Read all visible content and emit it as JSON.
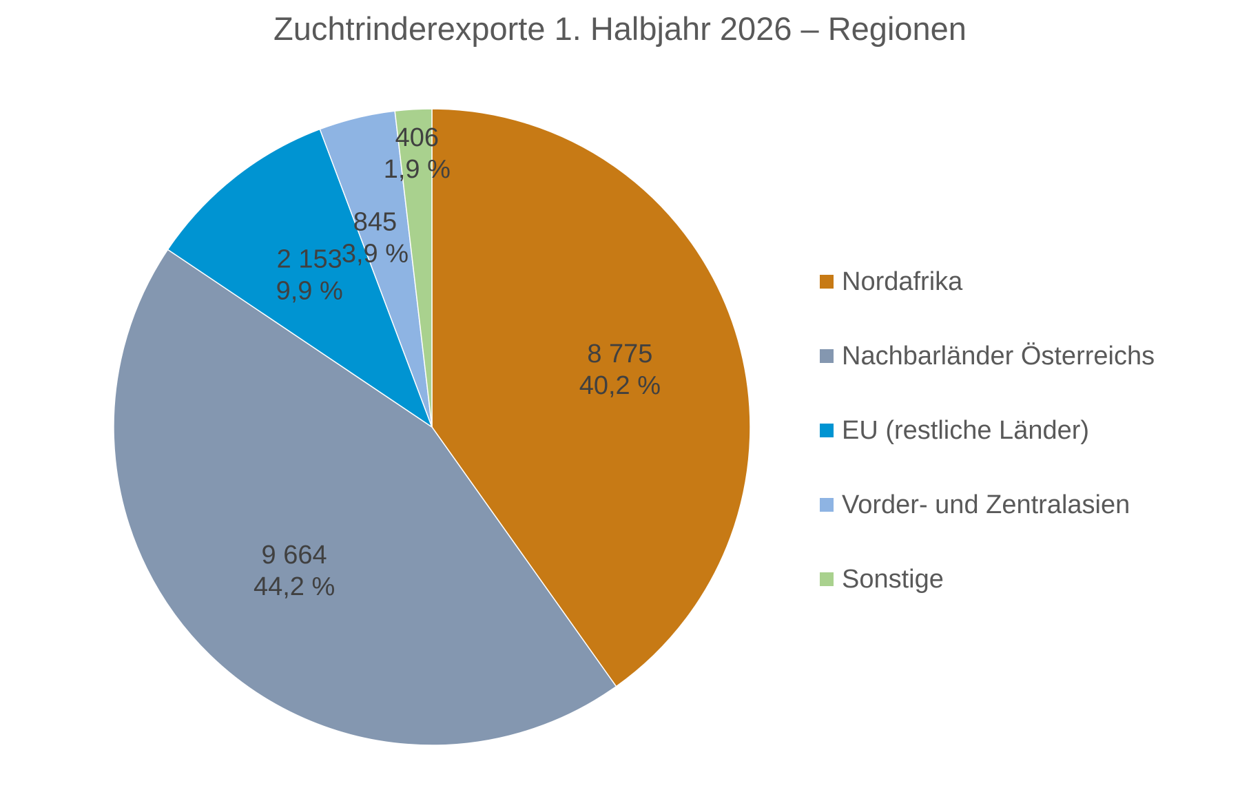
{
  "chart_data": {
    "type": "pie",
    "title": "Zuchtrinderexporte 1. Halbjahr 2026 – Regionen",
    "start_angle_deg": 0,
    "direction": "clockwise",
    "legend_position": "right",
    "slices": [
      {
        "name": "Nordafrika",
        "value": 8775,
        "value_label": "8 775",
        "percent_label": "40,2 %",
        "color": "#C77A15"
      },
      {
        "name": "Nachbarländer Österreichs",
        "value": 9664,
        "value_label": "9 664",
        "percent_label": "44,2 %",
        "color": "#8497B0"
      },
      {
        "name": "EU (restliche Länder)",
        "value": 2153,
        "value_label": "2 153",
        "percent_label": "9,9 %",
        "color": "#0094D2"
      },
      {
        "name": "Vorder- und Zentralasien",
        "value": 845,
        "value_label": "845",
        "percent_label": "3,9 %",
        "color": "#8EB4E3"
      },
      {
        "name": "Sonstige",
        "value": 406,
        "value_label": "406",
        "percent_label": "1,9 %",
        "color": "#A9D18E"
      }
    ]
  }
}
